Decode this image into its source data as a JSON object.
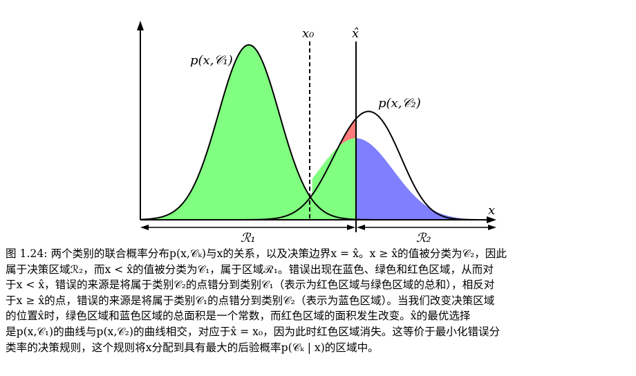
{
  "figure": {
    "label_x0": "x₀",
    "label_xhat": "x̂",
    "label_x_axis": "x",
    "label_curve1": "p(x,𝒞₁)",
    "label_curve2": "p(x,𝒞₂)",
    "label_region1": "ℛ₁",
    "label_region2": "ℛ₂",
    "colors": {
      "red_region": "#ff7b7b",
      "green_region": "#80ff80",
      "blue_region": "#7f7fff",
      "stroke": "#000000"
    }
  },
  "caption": {
    "lines": [
      "图 1.24: 两个类别的联合概率分布p(x,𝒞ₖ)与x的关系，以及决策边界x = x̂。x ≥ x̂的值被分类为𝒞₂，因此",
      "属于决策区域ℛ₂，而x < x̂的值被分类为𝒞₁，属于区域ℛ₁。错误出现在蓝色、绿色和红色区域，从而对",
      "于x < x̂，错误的来源是将属于类别𝒞₂的点错分到类别𝒞₁（表示为红色区域与绿色区域的总和），相反对",
      "于x ≥ x̂的点，错误的来源是将属于类别𝒞₁的点错分到类别𝒞₂（表示为蓝色区域）。当我们改变决策区域",
      "的位置x̂时，绿色区域和蓝色区域的总面积是一个常数，而红色区域的面积发生改变。x̂的最优选择",
      "是p(x,𝒞₁)的曲线与p(x,𝒞₂)的曲线相交，对应于x̂ = x₀，因为此时红色区域消失。这等价于最小化错误分",
      "类率的决策规则，这个规则将x分配到具有最大的后验概率p(𝒞ₖ | x)的区域中。"
    ]
  }
}
